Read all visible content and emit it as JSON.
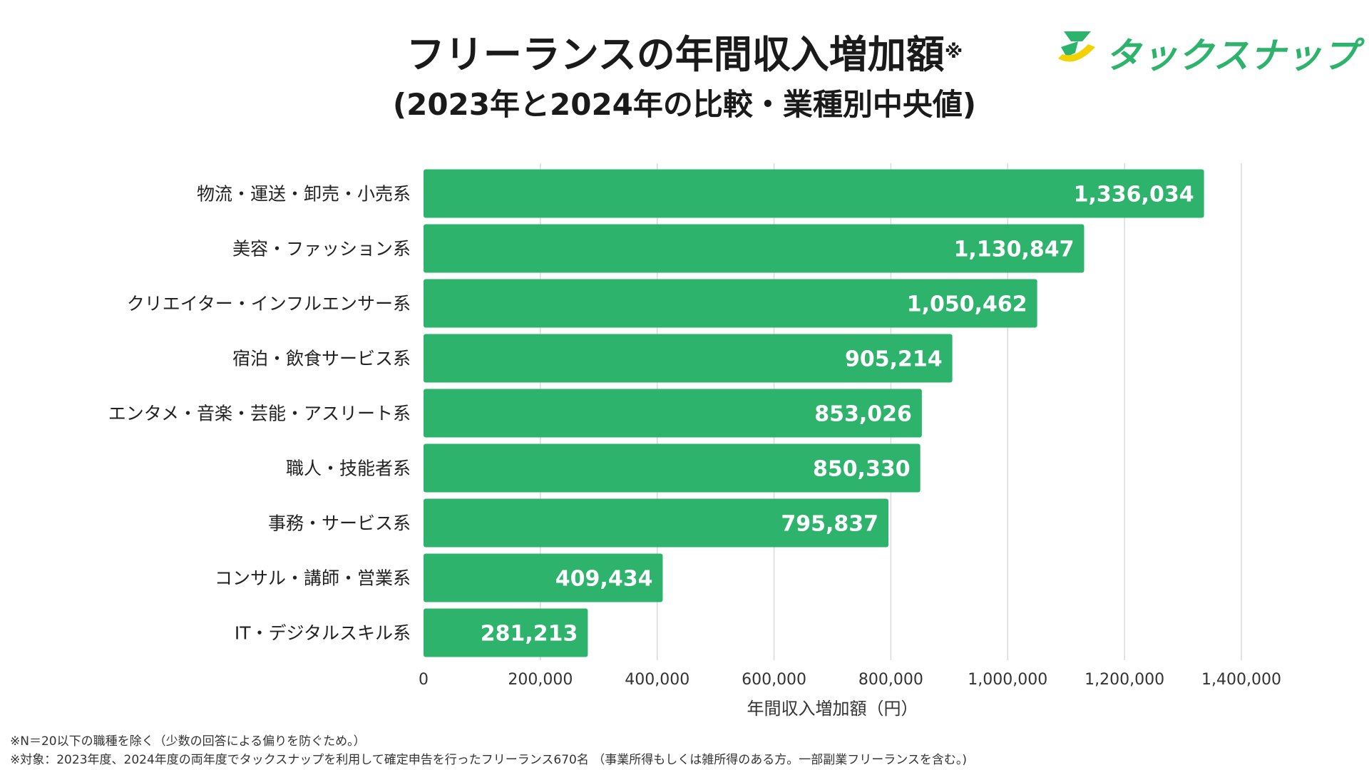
{
  "header": {
    "title": "フリーランスの年間収入増加額",
    "title_mark": "※",
    "subtitle": "(2023年と2024年の比較・業種別中央値)"
  },
  "logo": {
    "text": "タックスナップ",
    "icon": "taxnap-logo-icon",
    "color_green": "#2eb36d",
    "color_yellow": "#f2d200"
  },
  "chart_data": {
    "type": "bar",
    "orientation": "horizontal",
    "title": "フリーランスの年間収入増加額※",
    "subtitle": "(2023年と2024年の比較・業種別中央値)",
    "categories": [
      "物流・運送・卸売・小売系",
      "美容・ファッション系",
      "クリエイター・インフルエンサー系",
      "宿泊・飲食サービス系",
      "エンタメ・音楽・芸能・アスリート系",
      "職人・技能者系",
      "事務・サービス系",
      "コンサル・講師・営業系",
      "IT・デジタルスキル系"
    ],
    "values": [
      1336034,
      1130847,
      1050462,
      905214,
      853026,
      850330,
      795837,
      409434,
      281213
    ],
    "value_labels": [
      "1,336,034",
      "1,130,847",
      "1,050,462",
      "905,214",
      "853,026",
      "850,330",
      "795,837",
      "409,434",
      "281,213"
    ],
    "xlim": [
      0,
      1400000
    ],
    "xticks": [
      0,
      200000,
      400000,
      600000,
      800000,
      1000000,
      1200000,
      1400000
    ],
    "xtick_labels": [
      "0",
      "200,000",
      "400,000",
      "600,000",
      "800,000",
      "1,000,000",
      "1,200,000",
      "1,400,000"
    ],
    "xlabel": "年間収入増加額（円）",
    "ylabel": "",
    "grid": "vertical",
    "bar_color": "#2eb36d",
    "grid_color": "#d9d9d9"
  },
  "footnotes": [
    "※N＝20以下の職種を除く（少数の回答による偏りを防ぐため。）",
    "※対象：2023年度、2024年度の両年度でタックスナップを利用して確定申告を行ったフリーランス670名 （事業所得もしくは雑所得のある方。一部副業フリーランスを含む。)"
  ]
}
